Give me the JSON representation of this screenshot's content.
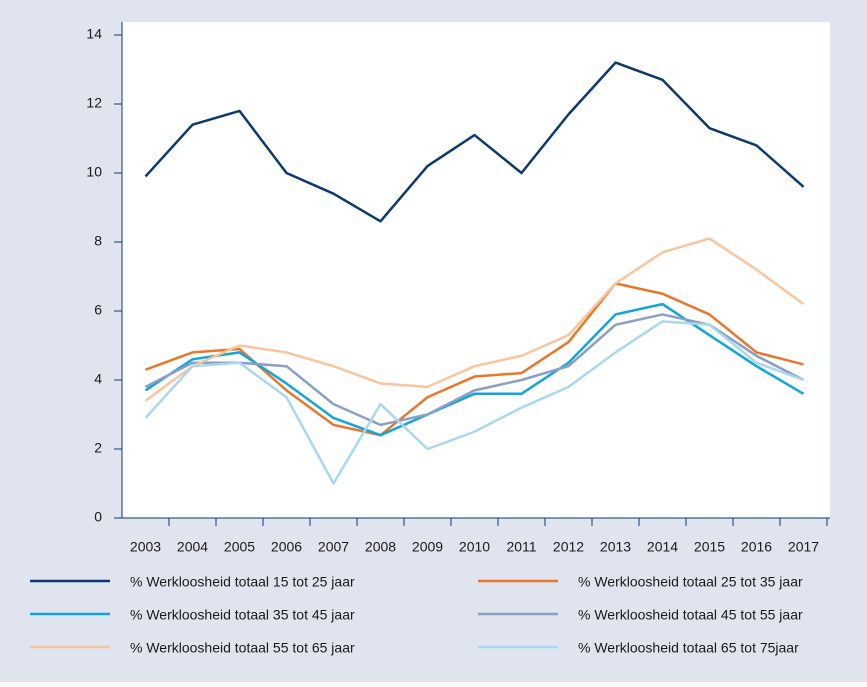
{
  "chart_data": {
    "type": "line",
    "categories": [
      "2003",
      "2004",
      "2005",
      "2006",
      "2007",
      "2008",
      "2009",
      "2010",
      "2011",
      "2012",
      "2013",
      "2014",
      "2015",
      "2016",
      "2017"
    ],
    "series": [
      {
        "name": "% Werkloosheid totaal 15 tot 25 jaar",
        "color": "#0b3a6e",
        "values": [
          9.9,
          11.4,
          11.8,
          10.0,
          9.4,
          8.6,
          10.2,
          11.1,
          10.0,
          11.7,
          13.2,
          12.7,
          11.3,
          10.8,
          9.6
        ]
      },
      {
        "name": "% Werkloosheid totaal 25 tot 35 jaar",
        "color": "#e8772a",
        "values": [
          4.3,
          4.8,
          4.9,
          3.7,
          2.7,
          2.4,
          3.5,
          4.1,
          4.2,
          5.1,
          6.8,
          6.5,
          5.9,
          4.8,
          4.45
        ]
      },
      {
        "name": "% Werkloosheid totaal 35 tot 45 jaar",
        "color": "#10a6d8",
        "values": [
          3.7,
          4.6,
          4.8,
          3.9,
          2.9,
          2.4,
          3.0,
          3.6,
          3.6,
          4.5,
          5.9,
          6.2,
          5.3,
          4.4,
          3.6
        ]
      },
      {
        "name": "% Werkloosheid totaal 45 tot 55 jaar",
        "color": "#8c9ec4",
        "values": [
          3.8,
          4.5,
          4.5,
          4.4,
          3.3,
          2.7,
          3.0,
          3.7,
          4.0,
          4.4,
          5.6,
          5.9,
          5.6,
          4.7,
          4.0
        ]
      },
      {
        "name": "% Werkloosheid totaal 55 tot 65 jaar",
        "color": "#f8c59c",
        "values": [
          3.4,
          4.4,
          5.0,
          4.8,
          4.4,
          3.9,
          3.8,
          4.4,
          4.7,
          5.3,
          6.8,
          7.7,
          8.1,
          7.2,
          6.2
        ]
      },
      {
        "name": "% Werkloosheid totaal 65 tot 75jaar",
        "color": "#a8d8f0",
        "values": [
          2.9,
          4.4,
          4.5,
          3.5,
          1.0,
          3.3,
          2.0,
          2.5,
          3.2,
          3.8,
          4.8,
          5.7,
          5.6,
          4.5,
          4.0
        ]
      }
    ],
    "ylim": [
      0,
      14
    ],
    "yticks": [
      0,
      2,
      4,
      6,
      8,
      10,
      12,
      14
    ],
    "grid": false
  }
}
